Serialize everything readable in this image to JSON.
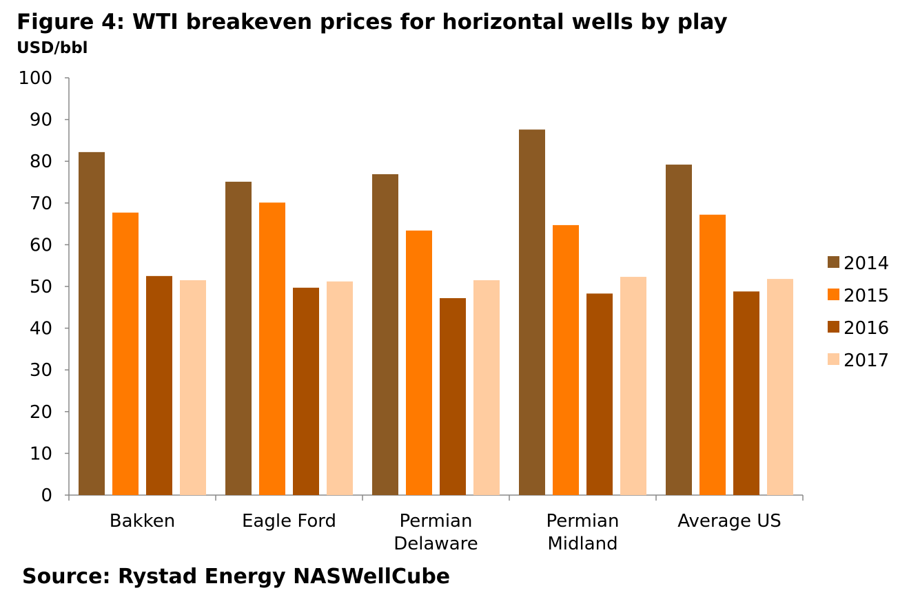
{
  "chart_data": {
    "type": "bar",
    "title": "Figure 4: WTI breakeven prices for horizontal wells by play",
    "ylabel": "USD/bbl",
    "xlabel": "",
    "source": "Source: Rystad Energy NASWellCube",
    "categories": [
      [
        "Bakken"
      ],
      [
        "Eagle Ford"
      ],
      [
        "Permian",
        "Delaware"
      ],
      [
        "Permian",
        "Midland"
      ],
      [
        "Average US"
      ]
    ],
    "ylim": [
      0,
      100
    ],
    "yticks": [
      0,
      10,
      20,
      30,
      40,
      50,
      60,
      70,
      80,
      90,
      100
    ],
    "grid": false,
    "legend_position": "right",
    "series": [
      {
        "name": "2014",
        "color": "#8B5A24",
        "values": [
          82.2,
          75.1,
          76.9,
          87.6,
          79.2
        ]
      },
      {
        "name": "2015",
        "color": "#FF7A00",
        "values": [
          67.7,
          70.1,
          63.4,
          64.7,
          67.2
        ]
      },
      {
        "name": "2016",
        "color": "#A84F00",
        "values": [
          52.5,
          49.7,
          47.2,
          48.3,
          48.8
        ]
      },
      {
        "name": "2017",
        "color": "#FFCCA0",
        "values": [
          51.5,
          51.2,
          51.5,
          52.3,
          51.8
        ]
      }
    ]
  }
}
